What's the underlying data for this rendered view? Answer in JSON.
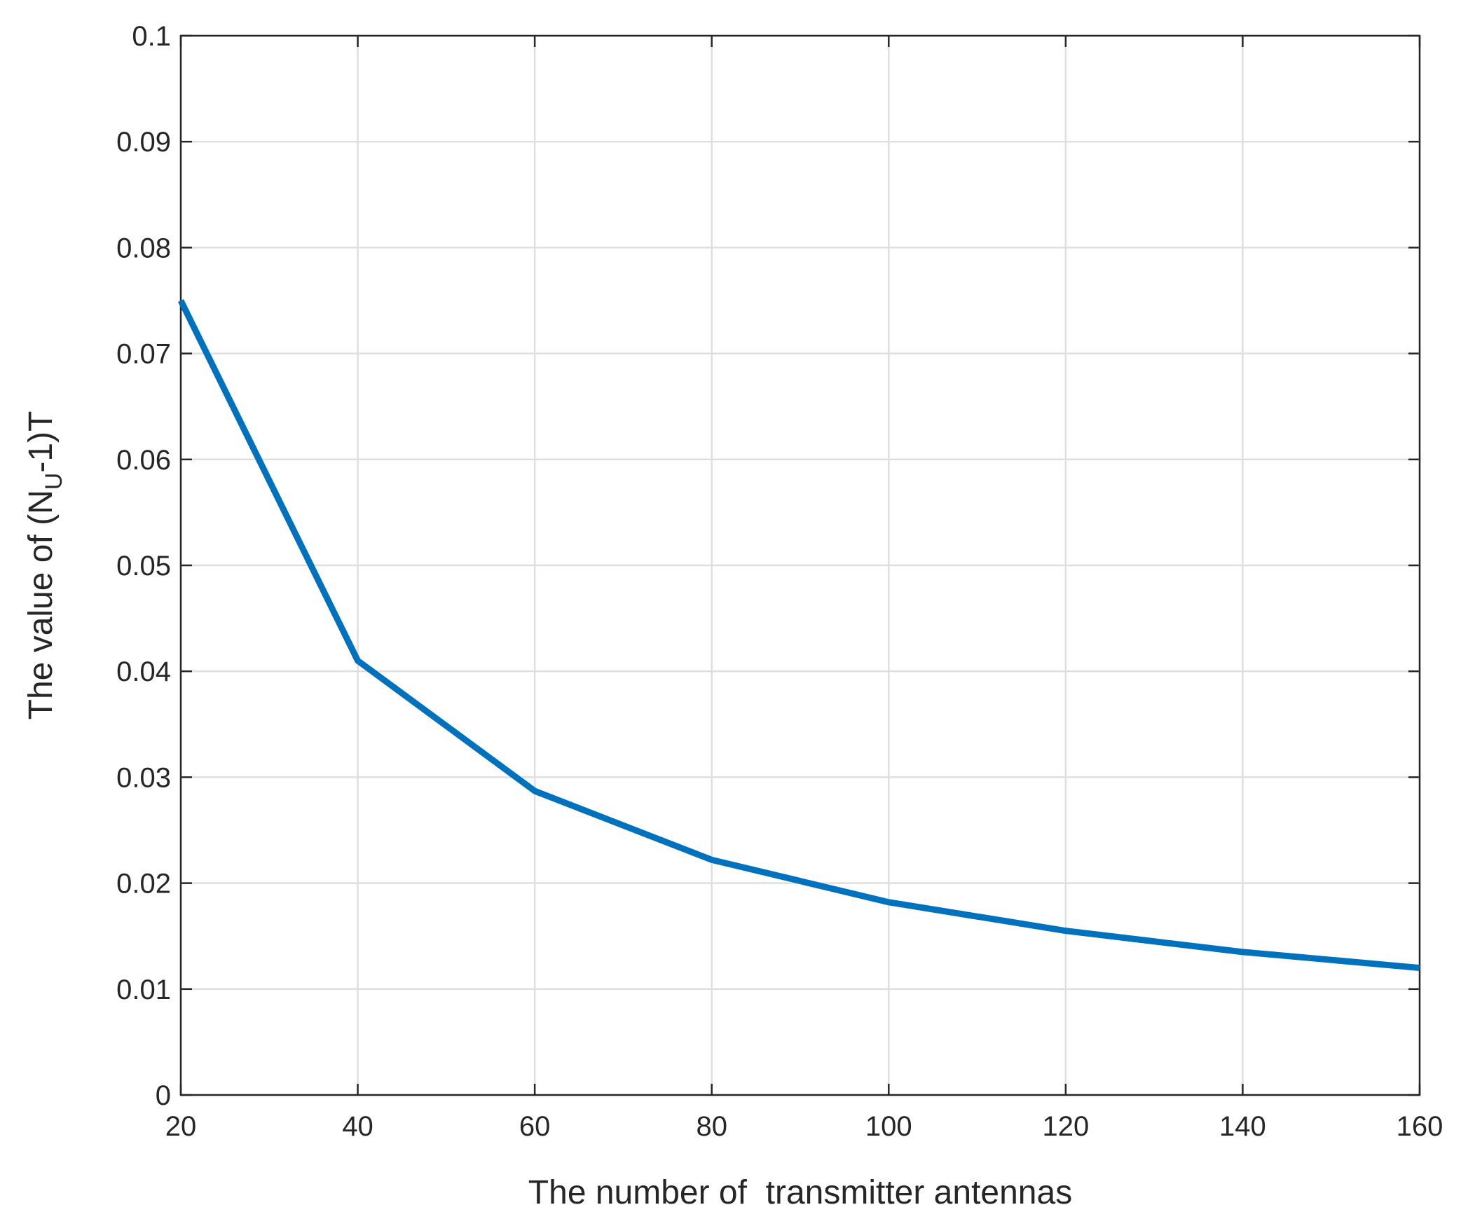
{
  "chart_data": {
    "type": "line",
    "xlabel": "The number of  transmitter antennas",
    "ylabel": [
      "The value of (N",
      "U",
      "-1)T"
    ],
    "x": [
      20,
      40,
      60,
      80,
      100,
      120,
      140,
      160
    ],
    "series": [
      {
        "color": "#0072bd",
        "values": [
          0.075,
          0.041,
          0.0287,
          0.0222,
          0.0182,
          0.0155,
          0.0135,
          0.012
        ]
      }
    ],
    "xlim": [
      20,
      160
    ],
    "xticks": [
      20,
      40,
      60,
      80,
      100,
      120,
      140,
      160
    ],
    "ylim": [
      0,
      0.1
    ],
    "yticks": [
      0,
      0.01,
      0.02,
      0.03,
      0.04,
      0.05,
      0.06,
      0.07,
      0.08,
      0.09,
      0.1
    ],
    "grid": true
  }
}
